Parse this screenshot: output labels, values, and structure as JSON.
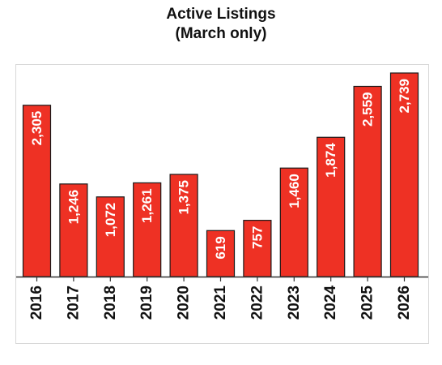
{
  "chart_data": {
    "type": "bar",
    "title_line1": "Active Listings",
    "title_line2": "(March only)",
    "categories": [
      "2016",
      "2017",
      "2018",
      "2019",
      "2020",
      "2021",
      "2022",
      "2023",
      "2024",
      "2025",
      "2026"
    ],
    "values": [
      2305,
      1246,
      1072,
      1261,
      1375,
      619,
      757,
      1460,
      1874,
      2559,
      2739
    ],
    "value_labels": [
      "2,305",
      "1,246",
      "1,072",
      "1,261",
      "1,375",
      "619",
      "757",
      "1,460",
      "1,874",
      "2,559",
      "2,739"
    ],
    "ylim": [
      0,
      2739
    ],
    "bar_color": "#ee3124",
    "grid": false,
    "legend": "none"
  }
}
